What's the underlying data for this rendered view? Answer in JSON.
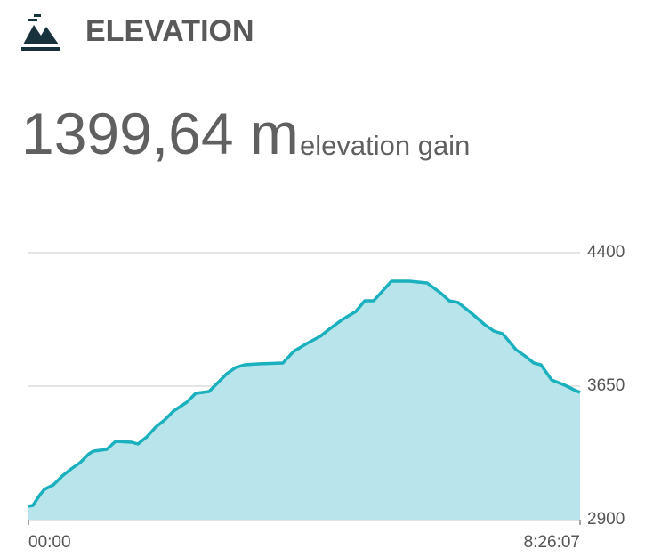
{
  "header": {
    "title": "ELEVATION",
    "value": "1399,64 m",
    "value_caption": "elevation gain"
  },
  "chart_data": {
    "type": "area",
    "color": "#1ab0bd",
    "fill": "#b8e5eb",
    "grid": true,
    "x": [
      0,
      245,
      637,
      882,
      1371,
      1861,
      2351,
      2841,
      3331,
      3575,
      4310,
      4800,
      5682,
      6024,
      6514,
      7004,
      7494,
      7984,
      8718,
      9208,
      9943,
      10433,
      10922,
      11412,
      11902,
      12637,
      14008,
      14596,
      15331,
      16065,
      16555,
      17290,
      18025,
      18514,
      19004,
      19494,
      19984,
      20963,
      21943,
      22678,
      23167,
      23657,
      24392,
      25127,
      25617,
      26106,
      26841,
      27331,
      27821,
      28213,
      28800,
      29535,
      30025,
      30367
    ],
    "values": [
      2975,
      2980,
      3040,
      3070,
      3095,
      3145,
      3185,
      3220,
      3270,
      3285,
      3295,
      3340,
      3335,
      3325,
      3365,
      3420,
      3460,
      3510,
      3560,
      3610,
      3620,
      3670,
      3720,
      3755,
      3770,
      3775,
      3780,
      3845,
      3890,
      3930,
      3970,
      4025,
      4070,
      4130,
      4130,
      4185,
      4240,
      4240,
      4230,
      4175,
      4130,
      4120,
      4060,
      3995,
      3960,
      3945,
      3855,
      3820,
      3780,
      3770,
      3685,
      3655,
      3630,
      3615
    ],
    "xlim": [
      0,
      30367
    ],
    "xticks": [
      {
        "value": 0,
        "label": "00:00"
      },
      {
        "value": 30367,
        "label": "8:26:07"
      }
    ],
    "ylim": [
      2900,
      4400
    ],
    "yticks": [
      2900,
      3650,
      4400
    ]
  }
}
